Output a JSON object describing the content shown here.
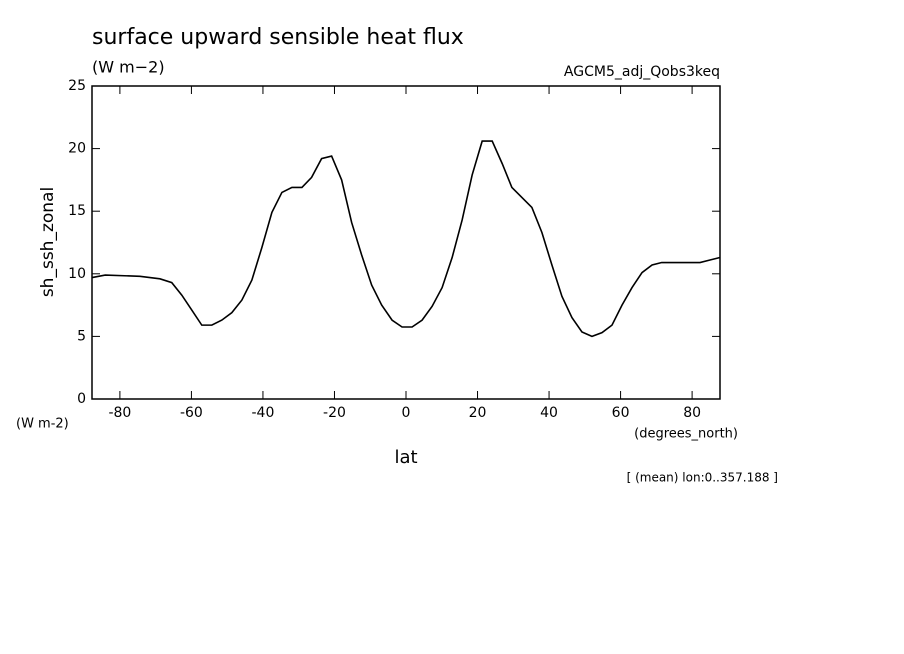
{
  "chart_data": {
    "type": "line",
    "title": "surface upward sensible heat flux",
    "subtitle": "(W m−2)",
    "experiment": "AGCM5_adj_Qobs3keq",
    "ylabel": "sh_ssh_zonal",
    "yunits": "(W m-2)",
    "xunits": "(degrees_north)",
    "xlabel": "lat",
    "note": "[ (mean) lon:0..357.188 ]",
    "x": [
      -87.8,
      -84.1,
      -74.4,
      -68.8,
      -65.5,
      -62.7,
      -59.9,
      -57.1,
      -54.3,
      -51.5,
      -48.7,
      -45.9,
      -43.1,
      -40.3,
      -37.5,
      -34.7,
      -31.9,
      -29.1,
      -26.4,
      -23.6,
      -20.8,
      -18.0,
      -15.2,
      -12.4,
      -9.6,
      -6.8,
      -3.9,
      -1.1,
      1.7,
      4.5,
      7.3,
      10.1,
      12.9,
      15.7,
      18.5,
      21.3,
      24.1,
      26.9,
      29.6,
      32.4,
      35.2,
      38.0,
      40.8,
      43.6,
      46.4,
      49.2,
      52.0,
      54.8,
      57.6,
      60.4,
      63.2,
      66.0,
      68.8,
      71.5,
      76.6,
      82.2,
      85.0,
      87.8
    ],
    "series": [
      {
        "color": "#000000",
        "values": [
          9.7,
          9.9,
          9.8,
          9.6,
          9.3,
          8.3,
          7.1,
          5.9,
          5.9,
          6.3,
          6.9,
          7.9,
          9.5,
          12.1,
          14.9,
          16.5,
          16.9,
          16.9,
          17.7,
          19.2,
          19.4,
          17.5,
          14.1,
          11.5,
          9.1,
          7.5,
          6.3,
          5.75,
          5.75,
          6.3,
          7.4,
          8.9,
          11.3,
          14.3,
          17.9,
          20.6,
          20.6,
          18.8,
          16.9,
          16.1,
          15.3,
          13.3,
          10.7,
          8.2,
          6.5,
          5.35,
          5.0,
          5.3,
          5.9,
          7.5,
          8.9,
          10.1,
          10.7,
          10.9,
          10.9,
          10.9,
          11.1,
          11.3
        ]
      }
    ],
    "xlim": [
      -87.8,
      87.8
    ],
    "xticks": [
      -80,
      -60,
      -40,
      -20,
      0,
      20,
      40,
      60,
      80
    ],
    "ylim": [
      0,
      25
    ],
    "yticks": [
      0,
      5,
      10,
      15,
      20,
      25
    ]
  }
}
